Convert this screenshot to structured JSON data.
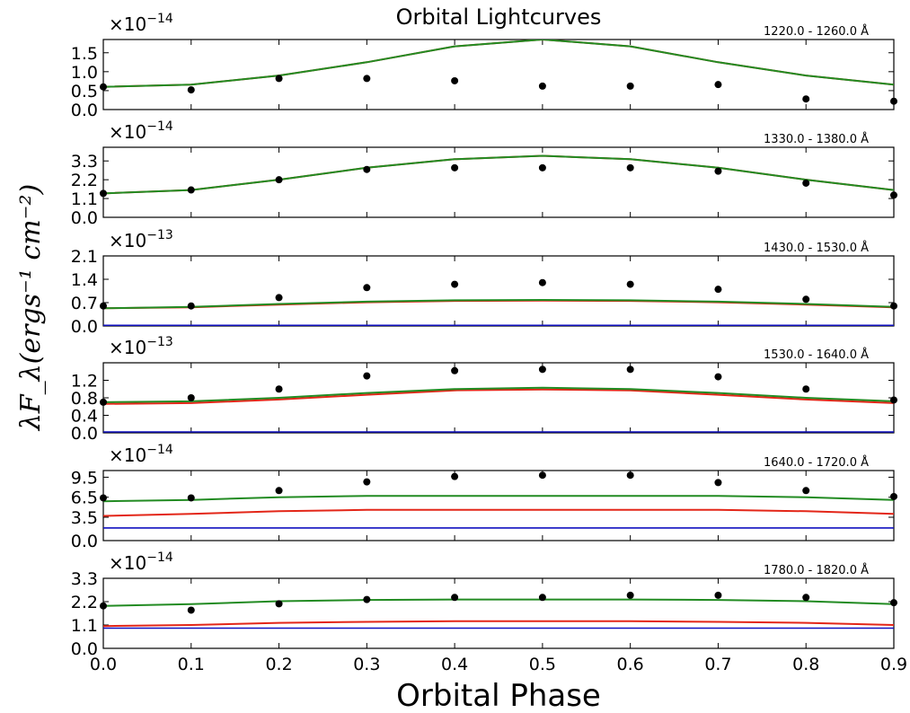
{
  "chart_data": {
    "title": "Orbital Lightcurves",
    "xlabel": "Orbital Phase",
    "ylabel": "λF_λ(ergs⁻¹ cm⁻²)",
    "x_ticks": [
      "0.0",
      "0.1",
      "0.2",
      "0.3",
      "0.4",
      "0.5",
      "0.6",
      "0.7",
      "0.8",
      "0.9"
    ],
    "x": [
      0.0,
      0.1,
      0.2,
      0.3,
      0.4,
      0.5,
      0.6,
      0.7,
      0.8,
      0.9
    ],
    "xlim": [
      0.0,
      0.9
    ],
    "colors": {
      "points": "#000000",
      "green": "#228b22",
      "red": "#e32618",
      "blue": "#1010c0"
    },
    "panels": [
      {
        "type": "line+scatter",
        "band_label": "1220.0 - 1260.0 Å",
        "multiplier_base": "×10",
        "multiplier_exp": "−14",
        "ylim": [
          0.0,
          1.85
        ],
        "yticks": [
          0.0,
          0.5,
          1.0,
          1.5
        ],
        "ytick_labels": [
          "0.0",
          "0.5",
          "1.0",
          "1.5"
        ],
        "points": [
          0.6,
          0.52,
          0.82,
          0.82,
          0.76,
          0.62,
          0.62,
          0.66,
          0.28,
          0.22
        ],
        "series": [
          {
            "color": "red",
            "values": [
              0.6,
              0.66,
              0.9,
              1.25,
              1.67,
              1.85,
              1.67,
              1.25,
              0.9,
              0.66
            ]
          },
          {
            "color": "green",
            "values": [
              0.6,
              0.66,
              0.9,
              1.25,
              1.67,
              1.85,
              1.67,
              1.25,
              0.9,
              0.66
            ]
          }
        ]
      },
      {
        "type": "line+scatter",
        "band_label": "1330.0 - 1380.0 Å",
        "multiplier_base": "×10",
        "multiplier_exp": "−14",
        "ylim": [
          0.0,
          4.1
        ],
        "yticks": [
          0.0,
          1.1,
          2.2,
          3.3
        ],
        "ytick_labels": [
          "0.0",
          "1.1",
          "2.2",
          "3.3"
        ],
        "points": [
          1.4,
          1.6,
          2.2,
          2.8,
          2.9,
          2.9,
          2.9,
          2.7,
          2.0,
          1.3
        ],
        "series": [
          {
            "color": "red",
            "values": [
              1.4,
              1.6,
              2.2,
              2.9,
              3.4,
              3.6,
              3.4,
              2.9,
              2.2,
              1.6
            ]
          },
          {
            "color": "green",
            "values": [
              1.4,
              1.6,
              2.2,
              2.9,
              3.4,
              3.6,
              3.4,
              2.9,
              2.2,
              1.6
            ]
          }
        ]
      },
      {
        "type": "line+scatter",
        "band_label": "1430.0 - 1530.0 Å",
        "multiplier_base": "×10",
        "multiplier_exp": "−13",
        "ylim": [
          0.0,
          2.1
        ],
        "yticks": [
          0.0,
          0.7,
          1.4,
          2.1
        ],
        "ytick_labels": [
          "0.0",
          "0.7",
          "1.4",
          "2.1"
        ],
        "points": [
          0.6,
          0.6,
          0.85,
          1.15,
          1.25,
          1.3,
          1.25,
          1.1,
          0.8,
          0.6
        ],
        "series": [
          {
            "color": "blue",
            "values": [
              0.02,
              0.02,
              0.02,
              0.02,
              0.02,
              0.02,
              0.02,
              0.02,
              0.02,
              0.02
            ]
          },
          {
            "color": "red",
            "values": [
              0.53,
              0.56,
              0.64,
              0.71,
              0.75,
              0.76,
              0.75,
              0.71,
              0.64,
              0.56
            ]
          },
          {
            "color": "green",
            "values": [
              0.53,
              0.57,
              0.66,
              0.73,
              0.77,
              0.78,
              0.77,
              0.73,
              0.66,
              0.57
            ]
          }
        ]
      },
      {
        "type": "line+scatter",
        "band_label": "1530.0 - 1640.0 Å",
        "multiplier_base": "×10",
        "multiplier_exp": "−13",
        "ylim": [
          0.0,
          1.6
        ],
        "yticks": [
          0.0,
          0.4,
          0.8,
          1.2
        ],
        "ytick_labels": [
          "0.0",
          "0.4",
          "0.8",
          "1.2"
        ],
        "points": [
          0.7,
          0.8,
          1.0,
          1.3,
          1.42,
          1.45,
          1.45,
          1.28,
          1.0,
          0.75
        ],
        "series": [
          {
            "color": "blue",
            "values": [
              0.02,
              0.02,
              0.02,
              0.02,
              0.02,
              0.02,
              0.02,
              0.02,
              0.02,
              0.02
            ]
          },
          {
            "color": "red",
            "values": [
              0.66,
              0.68,
              0.76,
              0.87,
              0.97,
              0.99,
              0.97,
              0.87,
              0.76,
              0.68
            ]
          },
          {
            "color": "green",
            "values": [
              0.7,
              0.72,
              0.8,
              0.91,
              1.0,
              1.03,
              1.0,
              0.91,
              0.8,
              0.72
            ]
          }
        ]
      },
      {
        "type": "line+scatter",
        "band_label": "1640.0 - 1720.0 Å",
        "multiplier_base": "×10",
        "multiplier_exp": "−14",
        "ylim": [
          0.0,
          10.5
        ],
        "yticks": [
          0.0,
          3.5,
          6.5,
          9.5
        ],
        "ytick_labels": [
          "0.0",
          "3.5",
          "6.5",
          "9.5"
        ],
        "points": [
          6.4,
          6.4,
          7.5,
          8.8,
          9.6,
          9.8,
          9.8,
          8.7,
          7.5,
          6.6
        ],
        "series": [
          {
            "color": "blue",
            "values": [
              1.9,
              1.9,
              1.9,
              1.9,
              1.9,
              1.9,
              1.9,
              1.9,
              1.9,
              1.9
            ]
          },
          {
            "color": "red",
            "values": [
              3.7,
              4.0,
              4.4,
              4.6,
              4.6,
              4.6,
              4.6,
              4.6,
              4.4,
              4.0
            ]
          },
          {
            "color": "green",
            "values": [
              5.9,
              6.1,
              6.5,
              6.7,
              6.7,
              6.7,
              6.7,
              6.7,
              6.5,
              6.1
            ]
          }
        ]
      },
      {
        "type": "line+scatter",
        "band_label": "1780.0 - 1820.0 Å",
        "multiplier_base": "×10",
        "multiplier_exp": "−14",
        "ylim": [
          0.0,
          3.3
        ],
        "yticks": [
          0.0,
          1.1,
          2.2,
          3.3
        ],
        "ytick_labels": [
          "0.0",
          "1.1",
          "2.2",
          "3.3"
        ],
        "points": [
          2.0,
          1.8,
          2.1,
          2.3,
          2.4,
          2.4,
          2.5,
          2.5,
          2.4,
          2.15
        ],
        "series": [
          {
            "color": "blue",
            "values": [
              0.95,
              0.95,
              0.95,
              0.95,
              0.95,
              0.95,
              0.95,
              0.95,
              0.95,
              0.95
            ]
          },
          {
            "color": "red",
            "values": [
              1.05,
              1.1,
              1.2,
              1.25,
              1.28,
              1.28,
              1.28,
              1.25,
              1.2,
              1.1
            ]
          },
          {
            "color": "green",
            "values": [
              2.0,
              2.08,
              2.22,
              2.28,
              2.3,
              2.3,
              2.3,
              2.28,
              2.22,
              2.08
            ]
          }
        ]
      }
    ]
  }
}
